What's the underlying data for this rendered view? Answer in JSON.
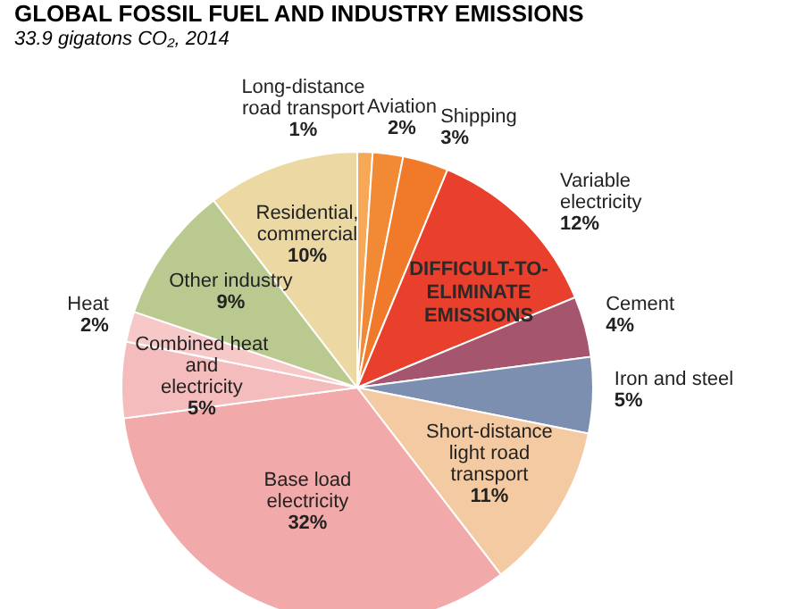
{
  "chart_data": {
    "type": "pie",
    "title": "GLOBAL FOSSIL FUEL AND INDUSTRY EMISSIONS",
    "subtitle": "33.9 gigatons CO₂, 2014",
    "categories": [
      "Long-distance road transport",
      "Aviation",
      "Shipping",
      "Variable electricity",
      "Cement",
      "Iron and steel",
      "Short-distance light road transport",
      "Base load electricity",
      "Combined heat and electricity",
      "Heat",
      "Other industry",
      "Residential, commercial"
    ],
    "values": [
      1,
      2,
      3,
      12,
      4,
      5,
      11,
      32,
      5,
      2,
      9,
      10
    ],
    "value_labels": [
      "1%",
      "2%",
      "3%",
      "12%",
      "4%",
      "5%",
      "11%",
      "32%",
      "5%",
      "2%",
      "9%",
      "10%"
    ],
    "colors": [
      "#f6a857",
      "#f28a35",
      "#f07a2a",
      "#e8402c",
      "#a5566e",
      "#7d8fb0",
      "#f3caa2",
      "#f2a9a9",
      "#f4bcbc",
      "#f6c8c8",
      "#b9c98f",
      "#ecd8a2"
    ],
    "annotations": [
      "DIFFICULT-TO-ELIMINATE EMISSIONS"
    ]
  }
}
